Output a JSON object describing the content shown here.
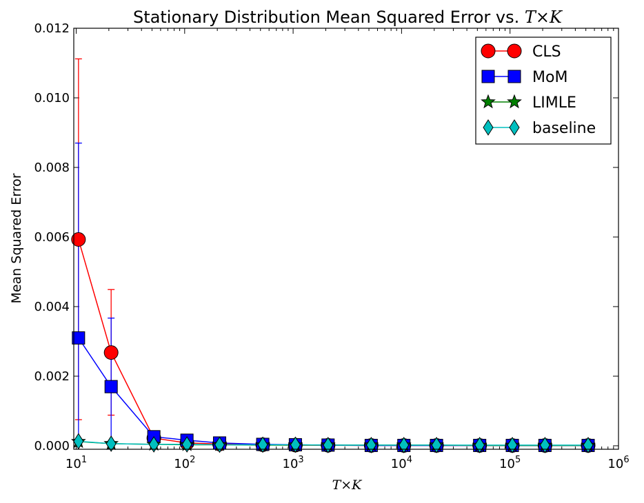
{
  "chart_data": {
    "type": "line",
    "title": "Stationary Distribution Mean Squared Error vs. T×K",
    "title_parts": {
      "text": "Stationary Distribution Mean Squared Error vs. ",
      "math": "T×K"
    },
    "xlabel": "T×K",
    "ylabel": "Mean Squared Error",
    "xscale": "log",
    "xlim": [
      9.5,
      1000000
    ],
    "ylim": [
      -0.0001,
      0.012
    ],
    "grid": false,
    "legend_position": "top-right",
    "x_ticks": [
      {
        "base": "10",
        "exp": "1"
      },
      {
        "base": "10",
        "exp": "2"
      },
      {
        "base": "10",
        "exp": "3"
      },
      {
        "base": "10",
        "exp": "4"
      },
      {
        "base": "10",
        "exp": "5"
      },
      {
        "base": "10",
        "exp": "6"
      }
    ],
    "y_ticks": [
      "0.000",
      "0.002",
      "0.004",
      "0.006",
      "0.008",
      "0.010",
      "0.012"
    ],
    "x": [
      10.5,
      21,
      52,
      105,
      210,
      525,
      1050,
      2100,
      5250,
      10500,
      21000,
      52500,
      105000,
      210000,
      525000
    ],
    "series": [
      {
        "name": "CLS",
        "color": "#ff0000",
        "marker": "circle",
        "values": [
          0.00593,
          0.00268,
          0.00022,
          8e-05,
          5e-05,
          3e-05,
          2e-05,
          1.5e-05,
          1e-05,
          1e-05,
          1e-05,
          1e-05,
          1e-05,
          1e-05,
          1e-05
        ],
        "error_upper": [
          0.01112,
          0.00449,
          0.00028,
          0.0001,
          6e-05,
          4e-05,
          3e-05,
          2e-05,
          1e-05,
          1e-05,
          1e-05,
          1e-05,
          1e-05,
          1e-05,
          1e-05
        ],
        "error_lower": [
          0.00075,
          0.00088,
          0.00016,
          6e-05,
          4e-05,
          2e-05,
          1e-05,
          1e-05,
          1e-05,
          1e-05,
          1e-05,
          1e-05,
          1e-05,
          1e-05,
          1e-05
        ]
      },
      {
        "name": "MoM",
        "color": "#0000ff",
        "marker": "square",
        "values": [
          0.0031,
          0.0017,
          0.00026,
          0.00016,
          8e-05,
          4e-05,
          3e-05,
          2e-05,
          1e-05,
          1e-05,
          1e-05,
          1e-05,
          1e-05,
          1e-05,
          1e-05
        ],
        "error_upper": [
          0.0087,
          0.00367,
          0.00035,
          0.0002,
          0.0001,
          5e-05,
          4e-05,
          3e-05,
          2e-05,
          1e-05,
          1e-05,
          1e-05,
          1e-05,
          1e-05,
          1e-05
        ],
        "error_lower": [
          0.0,
          0.0,
          0.00017,
          0.00012,
          6e-05,
          3e-05,
          2e-05,
          1e-05,
          1e-05,
          1e-05,
          1e-05,
          1e-05,
          1e-05,
          1e-05,
          1e-05
        ]
      },
      {
        "name": "LIMLE",
        "color": "#008000",
        "marker": "star",
        "values": [
          0.00012,
          6e-05,
          4e-05,
          3e-05,
          3e-05,
          2e-05,
          2e-05,
          2e-05,
          2e-05,
          2e-05,
          2e-05,
          1e-05,
          1e-05,
          1e-05,
          1e-05
        ]
      },
      {
        "name": "baseline",
        "color": "#00bfbf",
        "marker": "diamond",
        "values": [
          0.00013,
          6e-05,
          4e-05,
          4e-05,
          3e-05,
          3e-05,
          3e-05,
          2e-05,
          2e-05,
          2e-05,
          2e-05,
          2e-05,
          2e-05,
          2e-05,
          2e-05
        ]
      }
    ]
  }
}
